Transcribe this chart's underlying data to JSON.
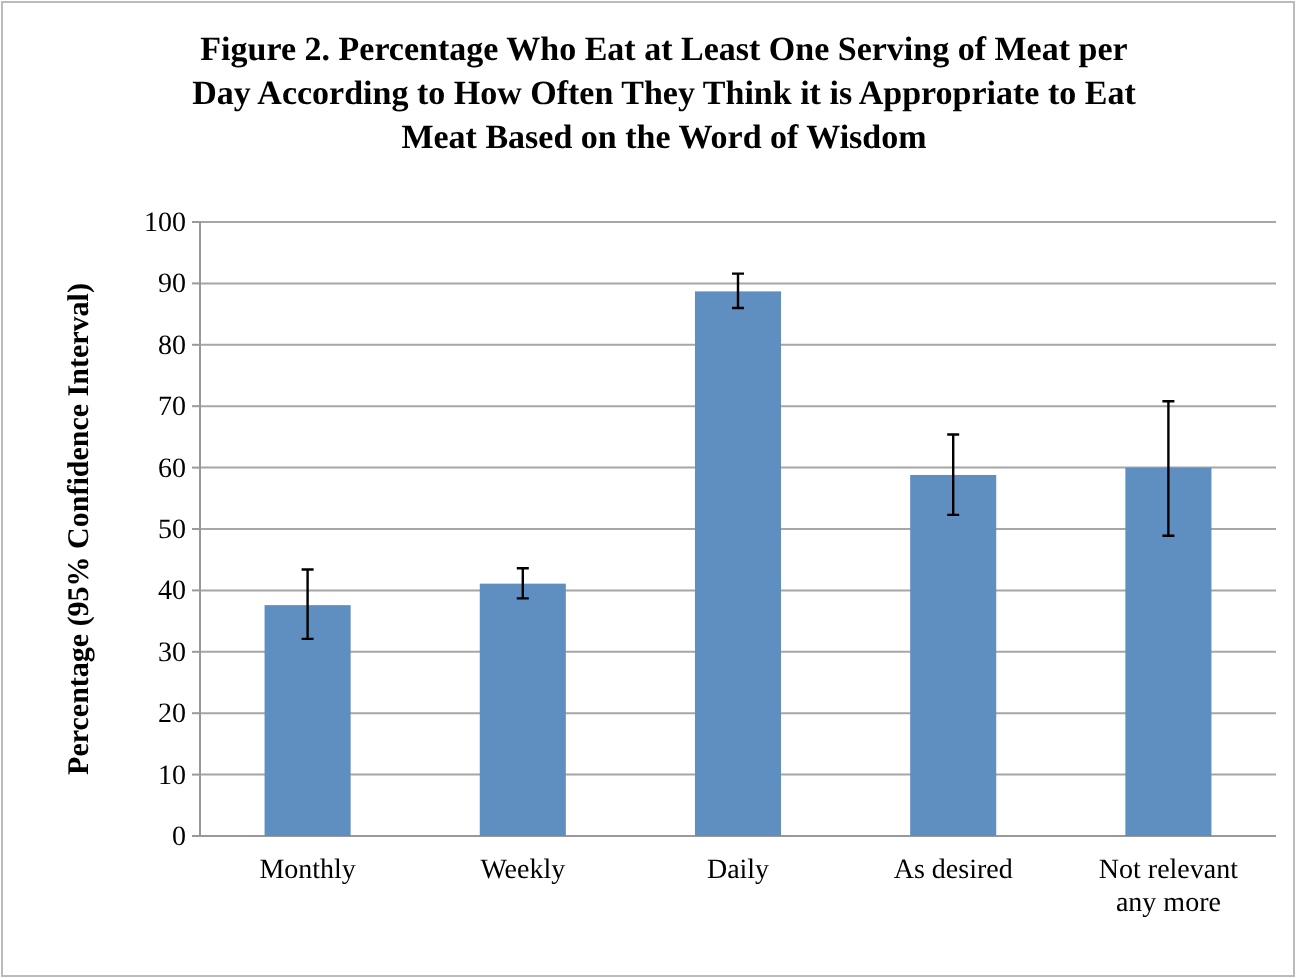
{
  "chart_data": {
    "type": "bar",
    "title": "Figure 2. Percentage Who Eat at Least One Serving of Meat per Day According to How Often They Think it is Appropriate to Eat Meat Based on the Word of Wisdom",
    "ylabel": "Percentage (95% Confidence Interval)",
    "categories": [
      "Monthly",
      "Weekly",
      "Daily",
      "As desired",
      "Not relevant any more"
    ],
    "values": [
      37.6,
      41.1,
      88.7,
      58.8,
      60
    ],
    "errors": [
      [
        32.1,
        43.4
      ],
      [
        38.7,
        43.6
      ],
      [
        86.0,
        91.6
      ],
      [
        52.3,
        65.4
      ],
      [
        48.9,
        70.8
      ]
    ],
    "color": "#5f8fc0",
    "ylim": [
      0,
      100
    ],
    "yticks": [
      0,
      10,
      20,
      30,
      40,
      50,
      60,
      70,
      80,
      90,
      100
    ],
    "grid": "y"
  }
}
